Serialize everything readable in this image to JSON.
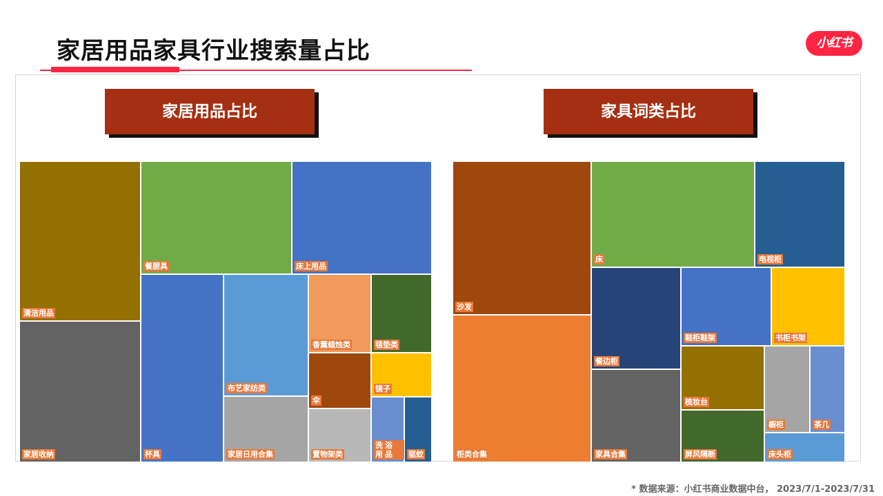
{
  "header": {
    "title": "家居用品家具行业搜索量占比",
    "logo_text": "小红书"
  },
  "source_note": "* 数据来源：小红书商业数据中台， 2023/7/1-2023/7/31",
  "chart_data": [
    {
      "type": "treemap",
      "title": "家居用品占比",
      "label_color": "#e8793a",
      "cells": [
        {
          "label": "清洁用品",
          "color": "#937000"
        },
        {
          "label": "家居收纳",
          "color": "#636363"
        },
        {
          "label": "餐厨具",
          "color": "#71ab48"
        },
        {
          "label": "床上用品",
          "color": "#4472c4"
        },
        {
          "label": "杯具",
          "color": "#4472c4"
        },
        {
          "label": "布艺家纺类",
          "color": "#5b9bd5"
        },
        {
          "label": "家居日用合集",
          "color": "#a5a5a5"
        },
        {
          "label": "香薰蜡烛类",
          "color": "#f09a5b"
        },
        {
          "label": "毯垫类",
          "color": "#43682b"
        },
        {
          "label": "伞",
          "color": "#9e480e"
        },
        {
          "label": "镜子",
          "color": "#ffc000"
        },
        {
          "label": "置物架类",
          "color": "#b8b8b8"
        },
        {
          "label": "洗浴用品",
          "color": "#698ed0"
        },
        {
          "label": "驱蚊",
          "color": "#255e91"
        }
      ]
    },
    {
      "type": "treemap",
      "title": "家具词类占比",
      "label_color": "#e8793a",
      "cells": [
        {
          "label": "沙发",
          "color": "#9e480e"
        },
        {
          "label": "柜类合集",
          "color": "#ed7d31"
        },
        {
          "label": "床",
          "color": "#71ab48"
        },
        {
          "label": "电视柜",
          "color": "#255e91"
        },
        {
          "label": "餐边柜",
          "color": "#264478"
        },
        {
          "label": "家具合集",
          "color": "#636363"
        },
        {
          "label": "鞋柜鞋架",
          "color": "#4472c4"
        },
        {
          "label": "书柜书架",
          "color": "#ffc000"
        },
        {
          "label": "梳妆台",
          "color": "#937000"
        },
        {
          "label": "屏风隔断",
          "color": "#43682b"
        },
        {
          "label": "橱柜",
          "color": "#a5a5a5"
        },
        {
          "label": "茶几",
          "color": "#698ed0"
        },
        {
          "label": "床头柜",
          "color": "#5b9bd5"
        }
      ]
    }
  ]
}
